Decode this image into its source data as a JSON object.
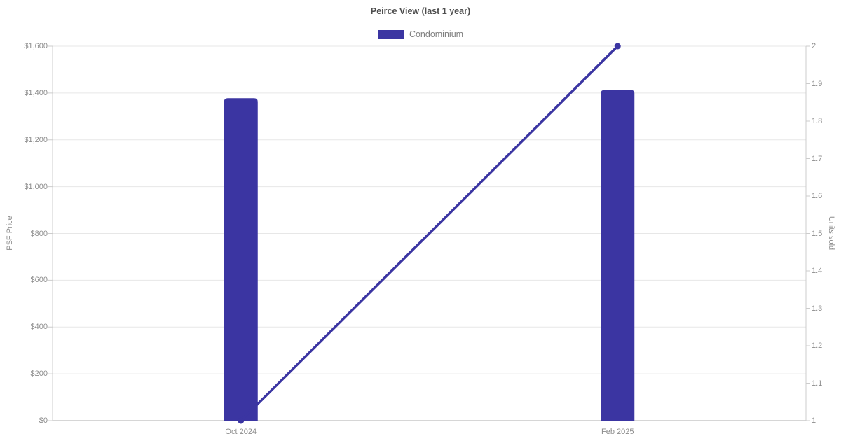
{
  "chart_data": {
    "type": "bar+line",
    "title": "Peirce View (last 1 year)",
    "categories": [
      "Oct 2024",
      "Feb 2025"
    ],
    "series": [
      {
        "name": "Condominium",
        "type": "bar",
        "axis": "left",
        "values": [
          1378,
          1413
        ]
      },
      {
        "name": "Units sold",
        "type": "line",
        "axis": "right",
        "values": [
          1,
          2
        ]
      }
    ],
    "left_axis": {
      "label": "PSF Price",
      "min": 0,
      "max": 1600,
      "step": 200,
      "prefix": "$"
    },
    "right_axis": {
      "label": "Units sold",
      "min": 1,
      "max": 2,
      "step": 0.1
    },
    "legend": {
      "position": "top",
      "items": [
        {
          "label": "Condominium",
          "color": "#3b35a2"
        }
      ]
    },
    "grid": true,
    "colors": {
      "accent": "#3b35a2",
      "grid": "#e7e7e7",
      "axis_line": "#cccccc",
      "baseline": "#c9c9c9",
      "tick_text": "#8c8c8c",
      "title_text": "#4d4d4d",
      "legend_text": "#808080",
      "background": "#ffffff"
    }
  }
}
